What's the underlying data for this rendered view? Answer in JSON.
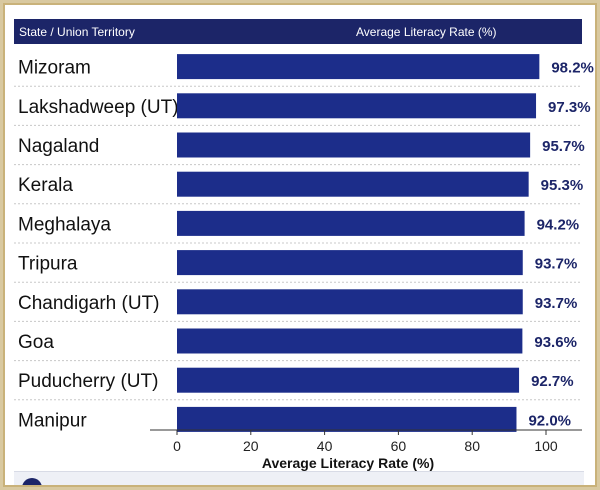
{
  "header": {
    "left": "State / Union Territory",
    "right": "Average Literacy Rate (%)"
  },
  "chart_data": {
    "type": "bar",
    "orientation": "horizontal",
    "categories": [
      "Mizoram",
      "Lakshadweep (UT)",
      "Nagaland",
      "Kerala",
      "Meghalaya",
      "Tripura",
      "Chandigarh (UT)",
      "Goa",
      "Puducherry (UT)",
      "Manipur"
    ],
    "values": [
      98.2,
      97.3,
      95.7,
      95.3,
      94.2,
      93.7,
      93.7,
      93.6,
      92.7,
      92.0
    ],
    "value_labels": [
      "98.2%",
      "97.3%",
      "95.7%",
      "95.3%",
      "94.2%",
      "93.7%",
      "93.7%",
      "93.6%",
      "92.7%",
      "92.0%"
    ],
    "xticks": [
      0,
      20,
      40,
      60,
      80,
      100
    ],
    "xlim": [
      0,
      100
    ],
    "xlabel": "Average Literacy Rate (%)",
    "bar_color": "#1c2d8a",
    "label_color": "#1c2568"
  }
}
